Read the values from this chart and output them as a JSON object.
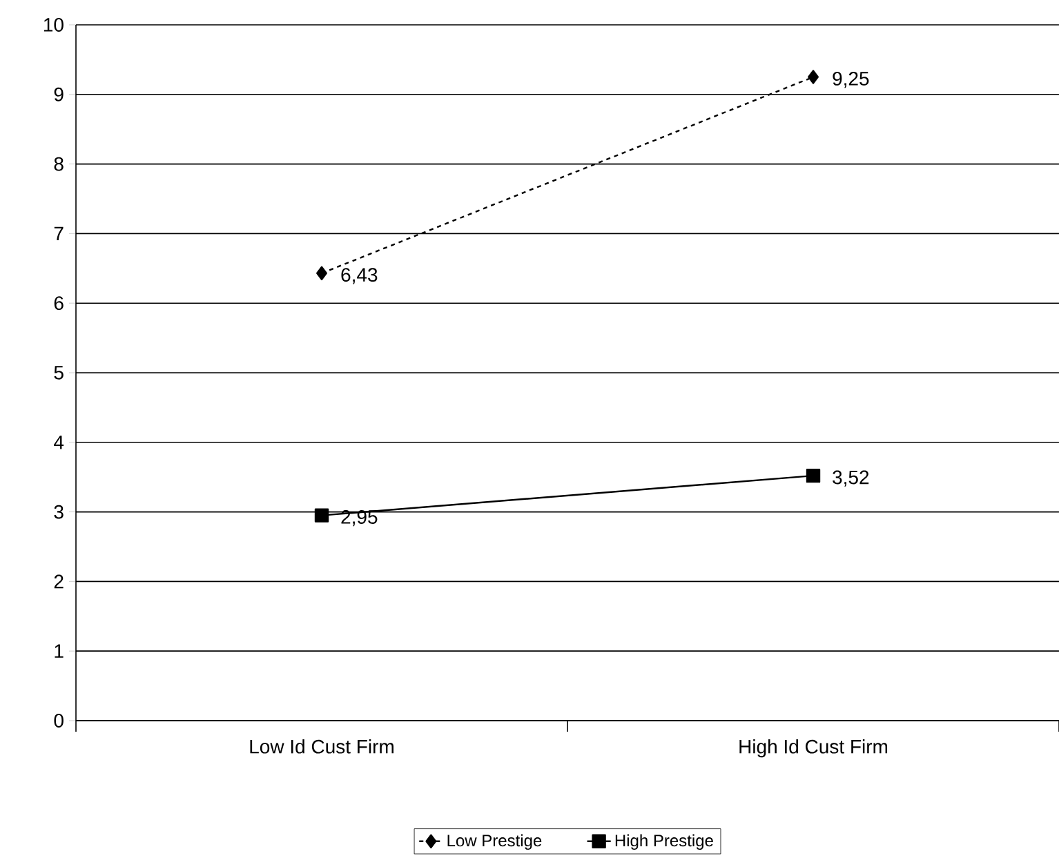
{
  "chart_data": {
    "type": "line",
    "categories": [
      "Low Id Cust Firm",
      "High Id Cust Firm"
    ],
    "series": [
      {
        "name": "Low Prestige",
        "color": "#000000",
        "values": [
          6.43,
          9.25
        ],
        "value_labels": [
          "6,43",
          "9,25"
        ],
        "marker": "diamond",
        "line_style": "dashed"
      },
      {
        "name": "High Prestige",
        "color": "#000000",
        "values": [
          2.95,
          3.52
        ],
        "value_labels": [
          "2,95",
          "3,52"
        ],
        "marker": "square",
        "line_style": "solid"
      }
    ],
    "ylim": [
      0,
      10
    ],
    "yticks": [
      0,
      1,
      2,
      3,
      4,
      5,
      6,
      7,
      8,
      9,
      10
    ],
    "grid": "y",
    "legend": "bottom"
  }
}
